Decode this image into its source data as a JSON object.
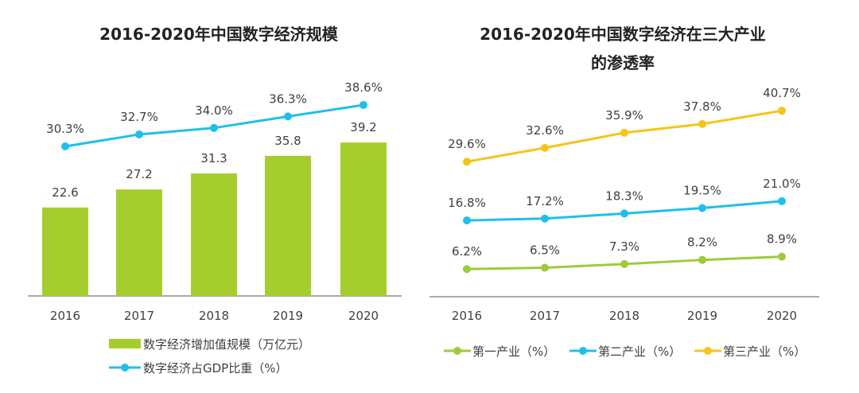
{
  "colors": {
    "bar": "#a6cd2e",
    "gdp_line": "#1ec0ea",
    "primary": "#9ccc3b",
    "secondary": "#1ec0ea",
    "tertiary": "#f5c518",
    "text": "#404040",
    "axis": "#555555"
  },
  "chart_data": [
    {
      "type": "bar",
      "title": "2016-2020年中国数字经济规模",
      "categories": [
        "2016",
        "2017",
        "2018",
        "2019",
        "2020"
      ],
      "ylim": [
        0,
        40
      ],
      "grid": false,
      "legend_position": "bottom",
      "series": [
        {
          "name": "数字经济增加值规模（万亿元）",
          "type": "bar",
          "values": [
            22.6,
            27.2,
            31.3,
            35.8,
            39.2
          ],
          "labels": [
            "22.6",
            "27.2",
            "31.3",
            "35.8",
            "39.2"
          ]
        },
        {
          "name": "数字经济占GDP比重（%）",
          "type": "line",
          "values": [
            30.3,
            32.7,
            34.0,
            36.3,
            38.6
          ],
          "labels": [
            "30.3%",
            "32.7%",
            "34.0%",
            "36.3%",
            "38.6%"
          ]
        }
      ]
    },
    {
      "type": "line",
      "title": "2016-2020年中国数字经济在三大产业的渗透率",
      "title_lines": [
        "2016-2020年中国数字经济在三大产业",
        "的渗透率"
      ],
      "categories": [
        "2016",
        "2017",
        "2018",
        "2019",
        "2020"
      ],
      "ylim": [
        0,
        50
      ],
      "grid": false,
      "legend_position": "bottom",
      "series": [
        {
          "name": "第一产业（%）",
          "values": [
            6.2,
            6.5,
            7.3,
            8.2,
            8.9
          ],
          "labels": [
            "6.2%",
            "6.5%",
            "7.3%",
            "8.2%",
            "8.9%"
          ]
        },
        {
          "name": "第二产业（%）",
          "values": [
            16.8,
            17.2,
            18.3,
            19.5,
            21.0
          ],
          "labels": [
            "16.8%",
            "17.2%",
            "18.3%",
            "19.5%",
            "21.0%"
          ]
        },
        {
          "name": "第三产业（%）",
          "values": [
            29.6,
            32.6,
            35.9,
            37.8,
            40.7
          ],
          "labels": [
            "29.6%",
            "32.6%",
            "35.9%",
            "37.8%",
            "40.7%"
          ]
        }
      ]
    }
  ]
}
